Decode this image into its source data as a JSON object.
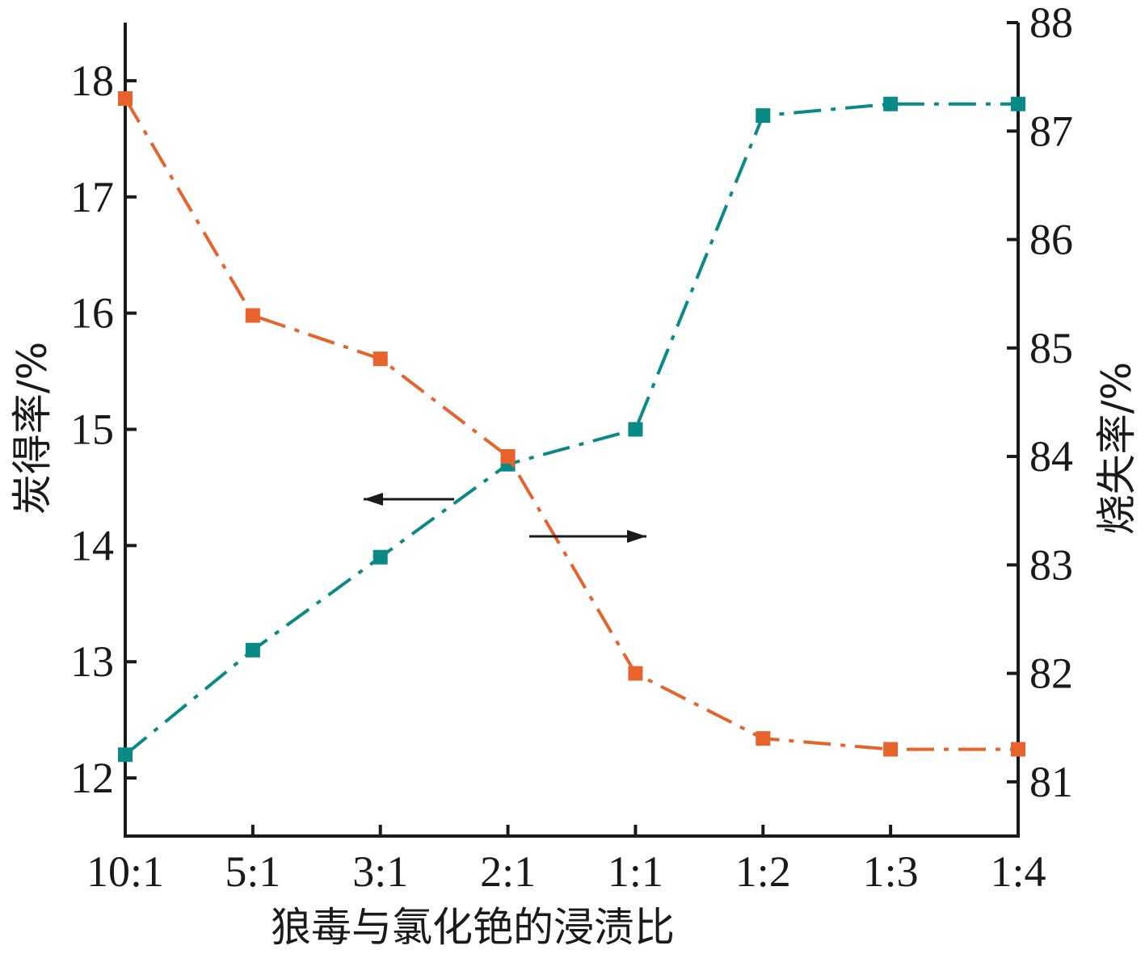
{
  "chart_data": {
    "type": "line",
    "xlabel": "狼毒与氯化铯的浸渍比",
    "categories": [
      "10:1",
      "5:1",
      "3:1",
      "2:1",
      "1:1",
      "1:2",
      "1:3",
      "1:4"
    ],
    "left_axis": {
      "label": "炭得率/%",
      "ylim": [
        11.5,
        18.5
      ],
      "ticks": [
        "12",
        "13",
        "14",
        "15",
        "16",
        "17",
        "18"
      ]
    },
    "right_axis": {
      "label": "烧失率/%",
      "ylim": [
        80.5,
        88
      ],
      "ticks": [
        "81",
        "82",
        "83",
        "84",
        "85",
        "86",
        "87",
        "88"
      ]
    },
    "series": [
      {
        "axis": "left",
        "color": "#0a8a86",
        "values": [
          12.2,
          13.1,
          13.9,
          14.7,
          15.0,
          17.7,
          17.8,
          17.8
        ]
      },
      {
        "axis": "right",
        "color": "#e8622c",
        "values": [
          87.3,
          85.3,
          84.9,
          84.0,
          82.0,
          81.4,
          81.3,
          81.3
        ]
      }
    ],
    "annotations": [
      {
        "kind": "arrow",
        "direction": "left",
        "refers_to": "left"
      },
      {
        "kind": "arrow",
        "direction": "right",
        "refers_to": "right"
      }
    ],
    "grid": false
  }
}
